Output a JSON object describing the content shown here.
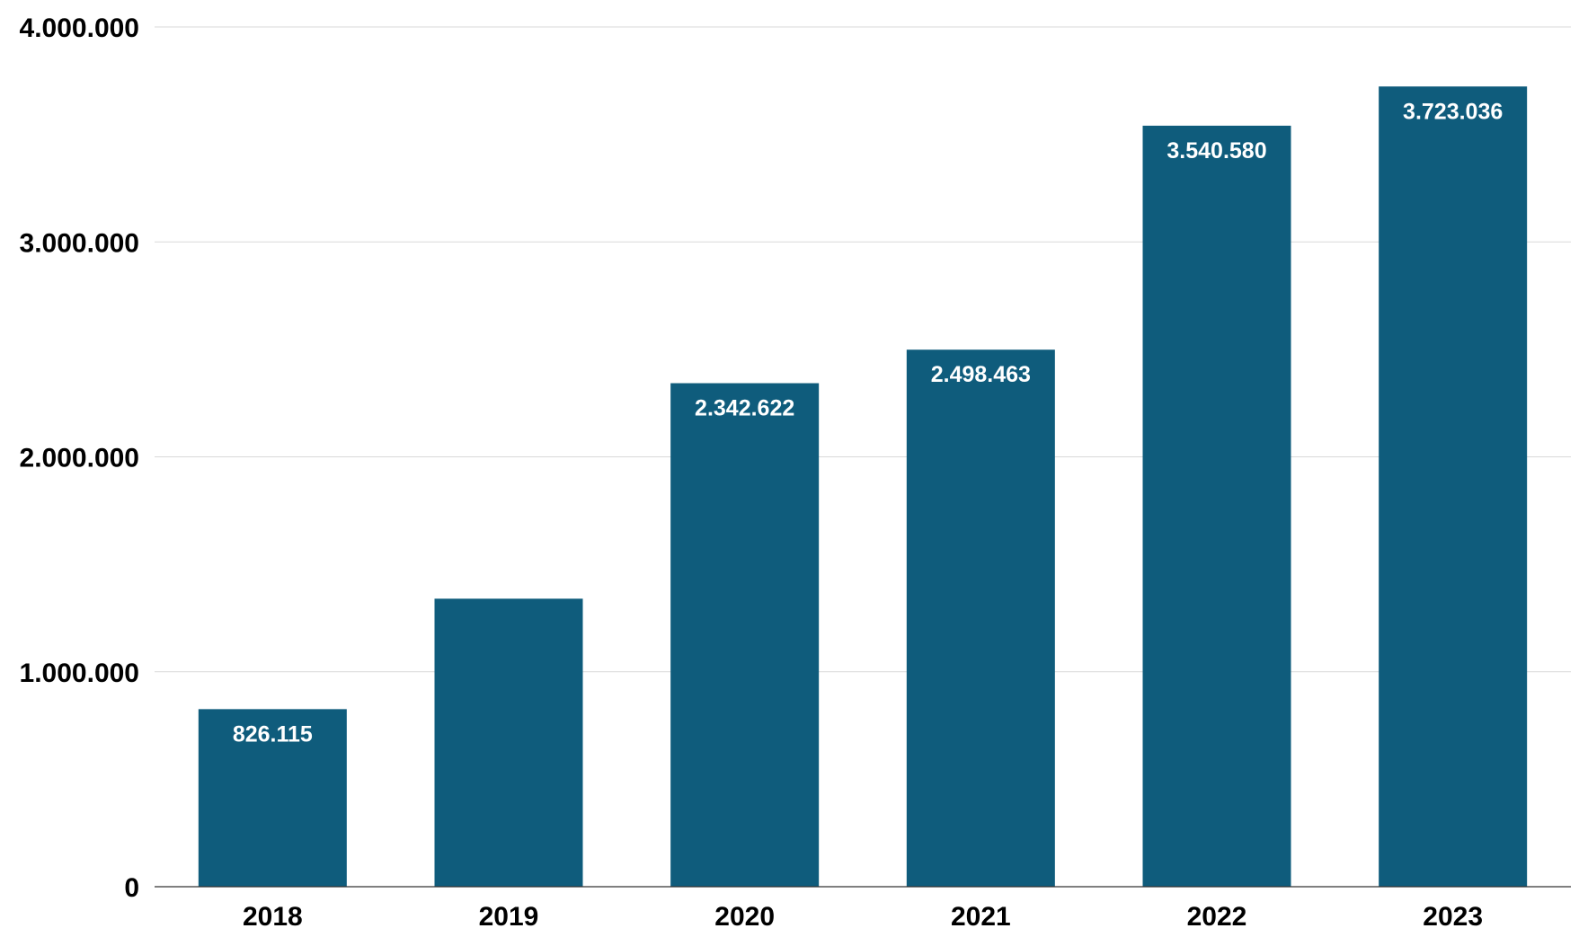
{
  "chart_data": {
    "type": "bar",
    "title": "",
    "xlabel": "",
    "ylabel": "",
    "categories": [
      "2018",
      "2019",
      "2020",
      "2021",
      "2022",
      "2023"
    ],
    "values": [
      826115,
      1340000,
      2342622,
      2498463,
      3540580,
      3723036
    ],
    "data_labels": [
      "826.115",
      "",
      "2.342.622",
      "2.498.463",
      "3.540.580",
      "3.723.036"
    ],
    "ylim": [
      0,
      4000000
    ],
    "yticks": [
      0,
      1000000,
      2000000,
      3000000,
      4000000
    ],
    "ytick_labels": [
      "0",
      "1.000.000",
      "2.000.000",
      "3.000.000",
      "4.000.000"
    ],
    "grid": true,
    "legend": "none",
    "bar_color": "#0f5c7c",
    "label_color": "#ffffff"
  }
}
